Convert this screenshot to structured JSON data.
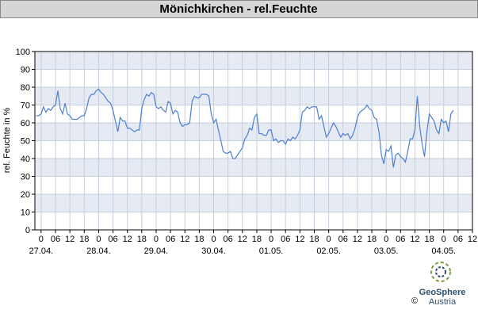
{
  "chart_data": {
    "type": "line",
    "title": "Mönichkirchen - rel.Feuchte",
    "y_label": "rel. Feuchte in %",
    "logo": {
      "name": "GeoSphere",
      "sub": "Austria",
      "copyright": "©"
    },
    "xlim": [
      -2.6,
      180
    ],
    "ylim": [
      0,
      100
    ],
    "yticks": [
      0,
      10,
      20,
      30,
      40,
      50,
      60,
      70,
      80,
      90,
      100
    ],
    "xticks": [
      0,
      {
        "value": 6,
        "label": "06"
      },
      {
        "value": 12,
        "label": "12"
      },
      {
        "value": 18,
        "label": "18"
      },
      {
        "value": 24,
        "label": "0"
      },
      {
        "value": 30,
        "label": "06"
      },
      {
        "value": 36,
        "label": "12"
      },
      {
        "value": 42,
        "label": "18"
      },
      {
        "value": 48,
        "label": "0"
      },
      {
        "value": 54,
        "label": "06"
      },
      {
        "value": 60,
        "label": "12"
      },
      {
        "value": 66,
        "label": "18"
      },
      {
        "value": 72,
        "label": "0"
      },
      {
        "value": 78,
        "label": "06"
      },
      {
        "value": 84,
        "label": "12"
      },
      {
        "value": 90,
        "label": "18"
      },
      {
        "value": 96,
        "label": "0"
      },
      {
        "value": 102,
        "label": "06"
      },
      {
        "value": 108,
        "label": "12"
      },
      {
        "value": 114,
        "label": "18"
      },
      {
        "value": 120,
        "label": "0"
      },
      {
        "value": 126,
        "label": "06"
      },
      {
        "value": 132,
        "label": "12"
      },
      {
        "value": 138,
        "label": "18"
      },
      {
        "value": 144,
        "label": "0"
      },
      {
        "value": 150,
        "label": "06"
      },
      {
        "value": 156,
        "label": "12"
      },
      {
        "value": 162,
        "label": "18"
      },
      {
        "value": 168,
        "label": "0"
      },
      {
        "value": 174,
        "label": "06"
      },
      {
        "value": 180,
        "label": "12"
      }
    ],
    "date_labels": [
      {
        "value": 0,
        "label": "27.04."
      },
      {
        "value": 24,
        "label": "28.04."
      },
      {
        "value": 48,
        "label": "29.04."
      },
      {
        "value": 72,
        "label": "30.04."
      },
      {
        "value": 96,
        "label": "01.05."
      },
      {
        "value": 120,
        "label": "02.05."
      },
      {
        "value": 144,
        "label": "03.05."
      },
      {
        "value": 168,
        "label": "04.05."
      }
    ],
    "grid": true,
    "series": [
      {
        "name": "rel. Feuchte",
        "color": "#4f7fd0",
        "x": [
          -2,
          -1,
          0,
          1,
          2,
          3,
          4,
          5,
          6,
          7,
          8,
          9,
          10,
          11,
          12,
          13,
          14,
          15,
          16,
          17,
          18,
          19,
          20,
          21,
          22,
          23,
          24,
          25,
          26,
          27,
          28,
          29,
          30,
          31,
          32,
          33,
          34,
          35,
          36,
          37,
          38,
          39,
          40,
          41,
          42,
          43,
          44,
          45,
          46,
          47,
          48,
          49,
          50,
          51,
          52,
          53,
          54,
          55,
          56,
          57,
          58,
          59,
          60,
          61,
          62,
          63,
          64,
          65,
          66,
          67,
          68,
          69,
          70,
          71,
          72,
          73,
          74,
          75,
          76,
          77,
          78,
          79,
          80,
          81,
          82,
          83,
          84,
          85,
          86,
          87,
          88,
          89,
          90,
          91,
          92,
          93,
          94,
          95,
          96,
          97,
          98,
          99,
          100,
          101,
          102,
          103,
          104,
          105,
          106,
          107,
          108,
          109,
          110,
          111,
          112,
          113,
          114,
          115,
          116,
          117,
          118,
          119,
          120,
          121,
          122,
          123,
          124,
          125,
          126,
          127,
          128,
          129,
          130,
          131,
          132,
          133,
          134,
          135,
          136,
          137,
          138,
          139,
          140,
          141,
          142,
          143,
          144,
          145,
          146,
          147,
          148,
          149,
          150,
          151,
          152,
          153,
          154,
          155,
          156,
          157,
          158,
          159,
          160,
          161,
          162,
          163,
          164,
          165,
          166,
          167,
          168,
          169,
          170,
          171,
          172
        ],
        "values": [
          64,
          64,
          65,
          69,
          66,
          68,
          67,
          69,
          70,
          78,
          68,
          65,
          71,
          65,
          64,
          62,
          62,
          62,
          63,
          64,
          64,
          68,
          74,
          76,
          76,
          78,
          79,
          77,
          76,
          74,
          72,
          71,
          67,
          61,
          55,
          63,
          61,
          61,
          57,
          57,
          56,
          55,
          56,
          56,
          68,
          73,
          76,
          75,
          77,
          76,
          69,
          68,
          69,
          67,
          66,
          72,
          71,
          65,
          67,
          66,
          60,
          58,
          59,
          59,
          60,
          72,
          75,
          74,
          74,
          76,
          76,
          76,
          75,
          65,
          60,
          62,
          56,
          50,
          44,
          43,
          43,
          44,
          40,
          40,
          42,
          44,
          46,
          51,
          53,
          57,
          56,
          63,
          65,
          54,
          54,
          53,
          53,
          56,
          56,
          50,
          51,
          49,
          50,
          50,
          48,
          51,
          50,
          52,
          51,
          53,
          56,
          66,
          67,
          69,
          68,
          69,
          69,
          69,
          62,
          64,
          58,
          52,
          54,
          57,
          60,
          58,
          55,
          52,
          54,
          53,
          54,
          51,
          53,
          57,
          63,
          66,
          67,
          68,
          70,
          68,
          67,
          63,
          62,
          55,
          42,
          37,
          45,
          44,
          47,
          35,
          42,
          43,
          41,
          40,
          38,
          44,
          51,
          51,
          56,
          75,
          58,
          48,
          41,
          55,
          65,
          63,
          61,
          56,
          54,
          62,
          60,
          61,
          55,
          65,
          67
        ]
      }
    ]
  }
}
